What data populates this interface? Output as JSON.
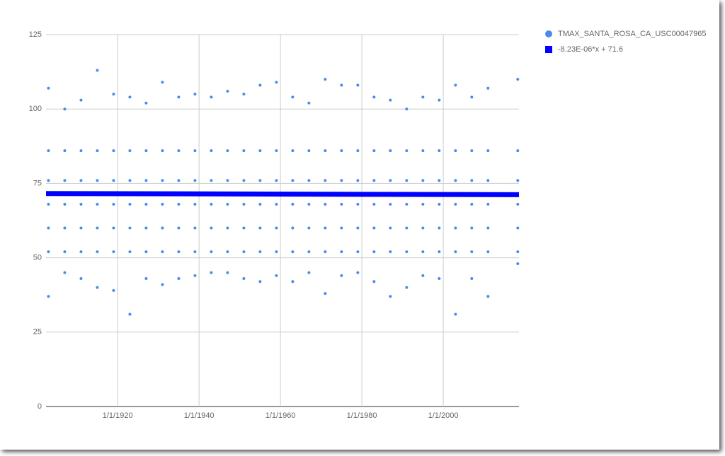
{
  "chart_data": {
    "type": "scatter",
    "xlim": [
      1902.4,
      2018.6
    ],
    "ylim": [
      0,
      125
    ],
    "xticks": [
      {
        "value": 1920,
        "label": "1/1/1920"
      },
      {
        "value": 1940,
        "label": "1/1/1940"
      },
      {
        "value": 1960,
        "label": "1/1/1960"
      },
      {
        "value": 1980,
        "label": "1/1/1980"
      },
      {
        "value": 2000,
        "label": "1/1/2000"
      }
    ],
    "yticks": [
      0,
      25,
      50,
      75,
      100,
      125
    ],
    "grid": true,
    "legend": "right",
    "series": [
      {
        "name": "TMAX_SANTA_ROSA_CA_USC00047965",
        "color": "#4a8af0",
        "mode": "points",
        "x": [
          1903,
          1903,
          1903,
          1903,
          1903,
          1903,
          1903,
          1907,
          1907,
          1907,
          1907,
          1907,
          1907,
          1907,
          1911,
          1911,
          1911,
          1911,
          1911,
          1911,
          1911,
          1915,
          1915,
          1915,
          1915,
          1915,
          1915,
          1915,
          1919,
          1919,
          1919,
          1919,
          1919,
          1919,
          1919,
          1923,
          1923,
          1923,
          1923,
          1923,
          1923,
          1923,
          1927,
          1927,
          1927,
          1927,
          1927,
          1927,
          1927,
          1931,
          1931,
          1931,
          1931,
          1931,
          1931,
          1931,
          1935,
          1935,
          1935,
          1935,
          1935,
          1935,
          1935,
          1939,
          1939,
          1939,
          1939,
          1939,
          1939,
          1939,
          1943,
          1943,
          1943,
          1943,
          1943,
          1943,
          1943,
          1947,
          1947,
          1947,
          1947,
          1947,
          1947,
          1947,
          1951,
          1951,
          1951,
          1951,
          1951,
          1951,
          1951,
          1955,
          1955,
          1955,
          1955,
          1955,
          1955,
          1955,
          1959,
          1959,
          1959,
          1959,
          1959,
          1959,
          1959,
          1963,
          1963,
          1963,
          1963,
          1963,
          1963,
          1963,
          1967,
          1967,
          1967,
          1967,
          1967,
          1967,
          1967,
          1971,
          1971,
          1971,
          1971,
          1971,
          1971,
          1971,
          1975,
          1975,
          1975,
          1975,
          1975,
          1975,
          1975,
          1979,
          1979,
          1979,
          1979,
          1979,
          1979,
          1979,
          1983,
          1983,
          1983,
          1983,
          1983,
          1983,
          1983,
          1987,
          1987,
          1987,
          1987,
          1987,
          1987,
          1987,
          1991,
          1991,
          1991,
          1991,
          1991,
          1991,
          1991,
          1995,
          1995,
          1995,
          1995,
          1995,
          1995,
          1995,
          1999,
          1999,
          1999,
          1999,
          1999,
          1999,
          1999,
          2003,
          2003,
          2003,
          2003,
          2003,
          2003,
          2003,
          2007,
          2007,
          2007,
          2007,
          2007,
          2007,
          2007,
          2011,
          2011,
          2011,
          2011,
          2011,
          2011,
          2011,
          2018.3,
          2018.3,
          2018.3,
          2018.3,
          2018.3,
          2018.3,
          2018.3
        ],
        "values": [
          37,
          52,
          60,
          68,
          76,
          86,
          107,
          45,
          52,
          60,
          68,
          76,
          86,
          100,
          43,
          52,
          60,
          68,
          76,
          86,
          103,
          40,
          52,
          60,
          68,
          76,
          86,
          113,
          39,
          52,
          60,
          68,
          76,
          86,
          105,
          31,
          52,
          60,
          68,
          76,
          86,
          104,
          43,
          52,
          60,
          68,
          76,
          86,
          102,
          41,
          52,
          60,
          68,
          76,
          86,
          109,
          43,
          52,
          60,
          68,
          76,
          86,
          104,
          44,
          52,
          60,
          68,
          76,
          86,
          105,
          45,
          52,
          60,
          68,
          76,
          86,
          104,
          45,
          52,
          60,
          68,
          76,
          86,
          106,
          43,
          52,
          60,
          68,
          76,
          86,
          105,
          42,
          52,
          60,
          68,
          76,
          86,
          108,
          44,
          52,
          60,
          68,
          76,
          86,
          109,
          42,
          52,
          60,
          68,
          76,
          86,
          104,
          45,
          52,
          60,
          68,
          76,
          86,
          102,
          38,
          52,
          60,
          68,
          76,
          86,
          110,
          44,
          52,
          60,
          68,
          76,
          86,
          108,
          45,
          52,
          60,
          68,
          76,
          86,
          108,
          42,
          52,
          60,
          68,
          76,
          86,
          104,
          37,
          52,
          60,
          68,
          76,
          86,
          103,
          40,
          52,
          60,
          68,
          76,
          86,
          100,
          44,
          52,
          60,
          68,
          76,
          86,
          104,
          43,
          52,
          60,
          68,
          76,
          86,
          103,
          31,
          52,
          60,
          68,
          76,
          86,
          108,
          43,
          52,
          60,
          68,
          76,
          86,
          104,
          37,
          52,
          60,
          68,
          76,
          86,
          107,
          48,
          52,
          60,
          68,
          76,
          86,
          110
        ]
      },
      {
        "name": "-8.23E-06*x + 71.6",
        "color": "#0000ff",
        "mode": "line",
        "x": [
          1902.4,
          2018.6
        ],
        "values": [
          71.6,
          71.2
        ]
      }
    ]
  }
}
